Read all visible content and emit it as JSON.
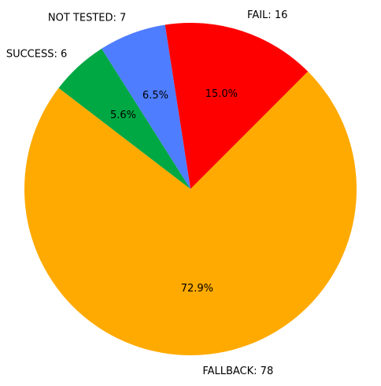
{
  "chart_data": {
    "type": "pie",
    "title": "",
    "slices": [
      {
        "label": "FAIL: 16",
        "value": 16,
        "percent_label": "15.0%",
        "color": "#ff0000"
      },
      {
        "label": "NOT TESTED: 7",
        "value": 7,
        "percent_label": "6.5%",
        "color": "#4f7dff"
      },
      {
        "label": "SUCCESS: 6",
        "value": 6,
        "percent_label": "5.6%",
        "color": "#00a843"
      },
      {
        "label": "FALLBACK: 78",
        "value": 78,
        "percent_label": "72.9%",
        "color": "#ffaa00"
      }
    ],
    "start_angle_deg": 45,
    "direction": "counterclockwise",
    "legend": "none"
  }
}
